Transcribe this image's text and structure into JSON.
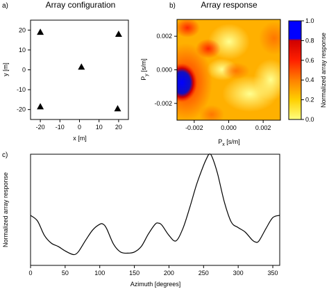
{
  "chart_data": [
    {
      "panel": "a)",
      "type": "scatter",
      "title": "Array configuration",
      "xlabel": "x [m]",
      "ylabel": "y [m]",
      "xlim": [
        -25,
        25
      ],
      "ylim": [
        -25,
        25
      ],
      "xticks": [
        -20,
        -10,
        0,
        10,
        20
      ],
      "yticks": [
        -20,
        -10,
        0,
        10,
        20
      ],
      "marker": "filled-triangle",
      "points": [
        {
          "x": -20,
          "y": 19
        },
        {
          "x": 20,
          "y": 18
        },
        {
          "x": 1,
          "y": 1.5
        },
        {
          "x": -20,
          "y": -18.5
        },
        {
          "x": 19.5,
          "y": -19.5
        }
      ]
    },
    {
      "panel": "b)",
      "type": "heatmap",
      "title": "Array response",
      "xlabel": "P",
      "xlabel_sub": "x",
      "xlabel_unit": " [s/m]",
      "ylabel": "P",
      "ylabel_sub": "y",
      "ylabel_unit": " [s/m]",
      "xlim": [
        -0.003,
        0.003
      ],
      "ylim": [
        -0.003,
        0.003
      ],
      "xticks": [
        "-0.002",
        "0.000",
        "0.002"
      ],
      "yticks": [
        "0.002",
        "0.000",
        "-0.002"
      ],
      "peak": {
        "px": -0.0029,
        "py": -0.0006,
        "value": 1.0
      },
      "colorbar": {
        "label": "Normalized array response",
        "range": [
          0,
          1
        ],
        "ticks": [
          "1.0",
          "0.8",
          "0.6",
          "0.4",
          "0.2",
          "0.0"
        ],
        "colors": [
          "#ffff80",
          "#ffd000",
          "#ff8000",
          "#ff2000",
          "#d00000",
          "#0000ff"
        ]
      }
    },
    {
      "panel": "c)",
      "type": "line",
      "xlabel": "Azimuth [degrees]",
      "ylabel": "Normalized array response",
      "xlim": [
        0,
        360
      ],
      "ylim": [
        0,
        1
      ],
      "xticks": [
        0,
        50,
        100,
        150,
        200,
        250,
        300,
        350
      ],
      "series": [
        {
          "x": [
            0,
            10,
            20,
            30,
            40,
            50,
            60,
            65,
            70,
            80,
            90,
            100,
            105,
            110,
            120,
            130,
            140,
            150,
            160,
            170,
            180,
            185,
            190,
            200,
            210,
            220,
            230,
            240,
            250,
            255,
            258,
            262,
            270,
            280,
            290,
            300,
            310,
            320,
            325,
            330,
            340,
            350,
            360
          ],
          "y": [
            0.45,
            0.4,
            0.27,
            0.2,
            0.17,
            0.13,
            0.1,
            0.1,
            0.13,
            0.23,
            0.32,
            0.37,
            0.37,
            0.33,
            0.19,
            0.12,
            0.11,
            0.12,
            0.17,
            0.28,
            0.37,
            0.38,
            0.36,
            0.27,
            0.22,
            0.33,
            0.52,
            0.73,
            0.9,
            0.97,
            1.0,
            0.98,
            0.83,
            0.57,
            0.39,
            0.34,
            0.3,
            0.23,
            0.21,
            0.22,
            0.33,
            0.43,
            0.45
          ]
        }
      ]
    }
  ]
}
